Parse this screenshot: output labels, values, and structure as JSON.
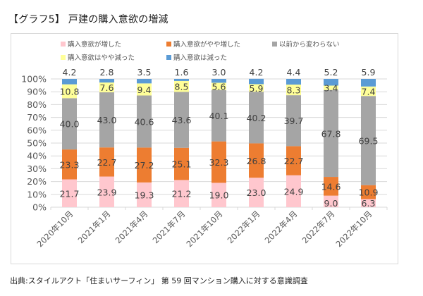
{
  "title": "【グラフ5】 戸建の購入意欲の増減",
  "source": "出典:スタイルアクト「住まいサーフィン」 第 59 回マンション購入に対する意識調査",
  "chart_data": {
    "type": "bar",
    "stacked": true,
    "percent": true,
    "title": "【グラフ5】 戸建の購入意欲の増減",
    "xlabel": "",
    "ylabel": "",
    "ylim": [
      0,
      100
    ],
    "yticks": [
      "0%",
      "10%",
      "20%",
      "30%",
      "40%",
      "50%",
      "60%",
      "70%",
      "80%",
      "90%",
      "100%"
    ],
    "grid": true,
    "legend_position": "top",
    "categories": [
      "2020年10月",
      "2021年1月",
      "2021年4月",
      "2021年7月",
      "2021年10月",
      "2022年1月",
      "2022年4月",
      "2022年7月",
      "2022年10月"
    ],
    "series": [
      {
        "name": "購入意欲が増した",
        "color": "#ffc7ce",
        "values": [
          21.7,
          23.9,
          19.3,
          21.2,
          19.0,
          23.0,
          24.9,
          9.0,
          6.3
        ]
      },
      {
        "name": "購入意欲がやや増した",
        "color": "#ed7d31",
        "values": [
          23.3,
          22.7,
          27.2,
          25.1,
          32.3,
          26.8,
          22.7,
          14.6,
          10.9
        ]
      },
      {
        "name": "以前から変わらない",
        "color": "#a5a5a5",
        "values": [
          40.0,
          43.0,
          40.6,
          43.6,
          40.1,
          40.2,
          39.7,
          67.8,
          69.5
        ]
      },
      {
        "name": "購入意欲はやや減った",
        "color": "#ffff99",
        "values": [
          10.8,
          7.6,
          9.4,
          8.5,
          5.6,
          5.9,
          8.3,
          3.4,
          7.4
        ]
      },
      {
        "name": "購入意欲は減った",
        "color": "#5b9bd5",
        "values": [
          4.2,
          2.8,
          3.5,
          1.6,
          3.0,
          4.2,
          4.4,
          5.2,
          5.9
        ]
      }
    ]
  }
}
